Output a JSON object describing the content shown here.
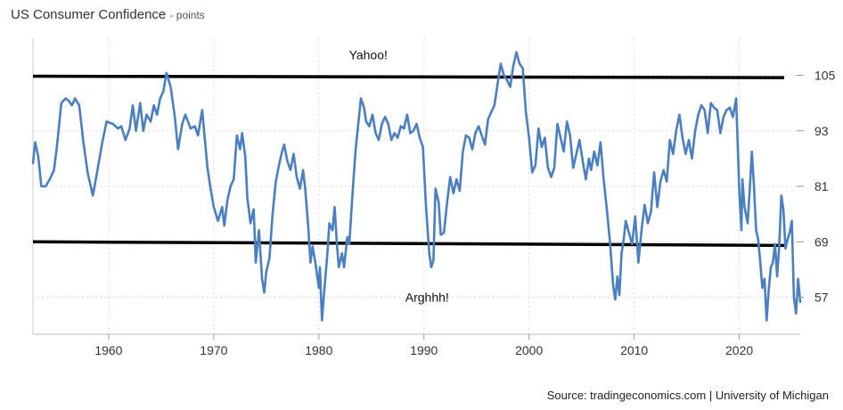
{
  "header": {
    "title": "US Consumer Confidence",
    "unit": "- points"
  },
  "source": "Source: tradingeconomics.com | University of Michigan",
  "chart_data": {
    "type": "line",
    "title": "US Consumer Confidence",
    "ylabel": "points",
    "xlim": [
      1952.8,
      2025.8
    ],
    "ylim": [
      49,
      113
    ],
    "x_ticks": [
      1960,
      1970,
      1980,
      1990,
      2000,
      2010,
      2020
    ],
    "y_ticks": [
      57,
      69,
      81,
      93,
      105
    ],
    "y_axis_side": "right",
    "grid": true,
    "colors": {
      "series": "#4a7fc1",
      "band_lines": "#000000",
      "grid": "#dddddd"
    },
    "annotations": [
      {
        "text": "Yahoo!",
        "x": 1984.7,
        "y": 108.5
      },
      {
        "text": "Arghhh!",
        "x": 1990.3,
        "y": 56
      }
    ],
    "reference_lines": [
      {
        "x": [
          1952.8,
          2025.8
        ],
        "y": [
          104.8,
          104.5
        ]
      },
      {
        "x": [
          1952.8,
          2025.8
        ],
        "y": [
          69.0,
          68.2
        ]
      }
    ],
    "series": [
      {
        "name": "",
        "x": [
          1952.8,
          1953.0,
          1953.3,
          1953.6,
          1954.0,
          1954.4,
          1954.8,
          1955.1,
          1955.5,
          1955.9,
          1956.2,
          1956.5,
          1956.8,
          1957.2,
          1957.6,
          1958.0,
          1958.5,
          1958.9,
          1959.4,
          1959.8,
          1960.4,
          1960.9,
          1961.2,
          1961.6,
          1962.0,
          1962.3,
          1962.6,
          1963.0,
          1963.3,
          1963.6,
          1964.0,
          1964.3,
          1964.6,
          1964.9,
          1965.2,
          1965.5,
          1965.9,
          1966.3,
          1966.6,
          1967.0,
          1967.3,
          1967.8,
          1968.2,
          1968.5,
          1968.9,
          1969.4,
          1969.7,
          1970.0,
          1970.4,
          1970.8,
          1971.0,
          1971.3,
          1971.6,
          1971.9,
          1972.2,
          1972.5,
          1972.7,
          1973.0,
          1973.2,
          1973.5,
          1973.8,
          1974.0,
          1974.3,
          1974.6,
          1974.8,
          1975.0,
          1975.3,
          1975.6,
          1975.9,
          1976.2,
          1976.5,
          1976.7,
          1977.0,
          1977.3,
          1977.6,
          1977.9,
          1978.2,
          1978.5,
          1978.7,
          1979.0,
          1979.2,
          1979.4,
          1979.7,
          1980.0,
          1980.1,
          1980.3,
          1980.5,
          1980.8,
          1981.0,
          1981.3,
          1981.5,
          1981.7,
          1981.9,
          1982.2,
          1982.4,
          1982.7,
          1982.9,
          1983.2,
          1983.5,
          1983.8,
          1984.0,
          1984.3,
          1984.5,
          1984.8,
          1985.1,
          1985.4,
          1985.7,
          1986.0,
          1986.3,
          1986.6,
          1986.9,
          1987.2,
          1987.5,
          1987.8,
          1988.1,
          1988.4,
          1988.7,
          1989.0,
          1989.3,
          1989.6,
          1989.9,
          1990.2,
          1990.5,
          1990.7,
          1990.9,
          1991.1,
          1991.4,
          1991.6,
          1991.9,
          1992.2,
          1992.5,
          1992.8,
          1993.1,
          1993.4,
          1993.7,
          1994.0,
          1994.3,
          1994.6,
          1994.9,
          1995.2,
          1995.5,
          1995.8,
          1996.1,
          1996.4,
          1996.7,
          1997.0,
          1997.3,
          1997.6,
          1997.9,
          1998.2,
          1998.5,
          1998.8,
          1999.1,
          1999.4,
          1999.7,
          2000.0,
          2000.3,
          2000.6,
          2000.9,
          2001.2,
          2001.5,
          2001.8,
          2002.1,
          2002.4,
          2002.7,
          2003.0,
          2003.3,
          2003.6,
          2003.9,
          2004.2,
          2004.5,
          2004.8,
          2005.1,
          2005.4,
          2005.7,
          2005.9,
          2006.2,
          2006.5,
          2006.8,
          2007.1,
          2007.4,
          2007.7,
          2008.0,
          2008.2,
          2008.4,
          2008.6,
          2008.8,
          2009.0,
          2009.2,
          2009.5,
          2009.8,
          2010.1,
          2010.4,
          2010.7,
          2011.0,
          2011.3,
          2011.6,
          2011.9,
          2012.2,
          2012.5,
          2012.8,
          2013.1,
          2013.4,
          2013.7,
          2014.0,
          2014.3,
          2014.6,
          2014.9,
          2015.2,
          2015.5,
          2015.8,
          2016.1,
          2016.4,
          2016.7,
          2017.0,
          2017.3,
          2017.6,
          2017.9,
          2018.2,
          2018.5,
          2018.8,
          2019.1,
          2019.4,
          2019.7,
          2020.0,
          2020.2,
          2020.3,
          2020.5,
          2020.8,
          2021.0,
          2021.2,
          2021.4,
          2021.6,
          2021.8,
          2022.0,
          2022.2,
          2022.4,
          2022.6,
          2022.8,
          2023.0,
          2023.2,
          2023.4,
          2023.6,
          2023.8,
          2024.0,
          2024.2,
          2024.4,
          2024.6,
          2024.8,
          2025.0,
          2025.2,
          2025.4,
          2025.6,
          2025.8
        ],
        "y": [
          86.0,
          90.5,
          87.5,
          81.0,
          81.0,
          82.5,
          84.5,
          90.0,
          99.0,
          100.0,
          99.5,
          98.5,
          100.0,
          98.5,
          90.5,
          84.0,
          79.0,
          84.0,
          90.5,
          95.0,
          94.5,
          93.5,
          94.0,
          91.0,
          93.5,
          98.5,
          93.0,
          99.0,
          93.0,
          96.5,
          95.0,
          98.5,
          96.5,
          100.0,
          101.5,
          105.5,
          102.5,
          96.0,
          89.0,
          94.5,
          96.5,
          93.5,
          94.0,
          92.0,
          97.5,
          85.0,
          80.5,
          76.5,
          73.5,
          76.5,
          72.5,
          78.0,
          81.0,
          82.5,
          92.0,
          89.0,
          92.5,
          87.5,
          78.5,
          73.0,
          76.0,
          64.5,
          71.5,
          61.0,
          58.0,
          62.5,
          65.5,
          75.0,
          82.0,
          85.5,
          88.5,
          90.0,
          86.5,
          84.5,
          88.0,
          83.0,
          80.5,
          84.5,
          80.5,
          72.0,
          64.5,
          68.0,
          64.0,
          59.0,
          63.5,
          52.0,
          58.0,
          66.0,
          73.0,
          71.5,
          76.5,
          69.0,
          63.5,
          66.5,
          63.5,
          70.0,
          68.5,
          79.5,
          89.0,
          95.5,
          100.0,
          98.0,
          95.0,
          94.0,
          96.5,
          92.5,
          91.0,
          94.5,
          96.0,
          94.5,
          91.0,
          92.5,
          91.5,
          94.0,
          93.5,
          96.5,
          92.5,
          93.0,
          94.5,
          91.5,
          89.5,
          76.5,
          66.5,
          63.5,
          65.0,
          80.5,
          77.5,
          70.5,
          71.0,
          77.5,
          83.0,
          79.5,
          82.5,
          80.0,
          88.5,
          92.0,
          91.5,
          89.0,
          92.5,
          94.0,
          92.0,
          90.0,
          95.5,
          97.0,
          98.5,
          103.0,
          107.5,
          105.0,
          104.0,
          102.5,
          107.0,
          110.0,
          107.5,
          106.5,
          97.0,
          91.5,
          84.0,
          85.5,
          93.5,
          89.5,
          91.5,
          85.0,
          83.0,
          85.0,
          94.5,
          91.5,
          88.5,
          95.0,
          92.0,
          85.0,
          88.0,
          91.0,
          86.5,
          82.5,
          87.0,
          84.5,
          88.5,
          85.5,
          90.5,
          82.5,
          76.0,
          69.0,
          59.5,
          56.5,
          61.5,
          57.5,
          66.5,
          69.5,
          73.5,
          71.0,
          68.5,
          74.5,
          64.5,
          71.5,
          77.0,
          73.0,
          75.5,
          84.0,
          76.5,
          82.0,
          84.5,
          82.0,
          91.0,
          88.0,
          93.0,
          96.5,
          91.5,
          88.0,
          91.0,
          87.0,
          93.0,
          96.5,
          98.5,
          97.5,
          92.5,
          99.0,
          98.0,
          97.5,
          92.5,
          96.0,
          97.5,
          98.0,
          96.0,
          100.0,
          80.0,
          71.5,
          82.5,
          76.5,
          73.0,
          80.5,
          88.5,
          81.0,
          71.5,
          69.5,
          64.5,
          59.0,
          61.0,
          52.0,
          58.5,
          63.5,
          64.5,
          68.5,
          61.5,
          68.0,
          79.0,
          76.0,
          67.5,
          69.5,
          71.0,
          73.5,
          57.0,
          53.5,
          61.0,
          56.0
        ]
      }
    ]
  }
}
